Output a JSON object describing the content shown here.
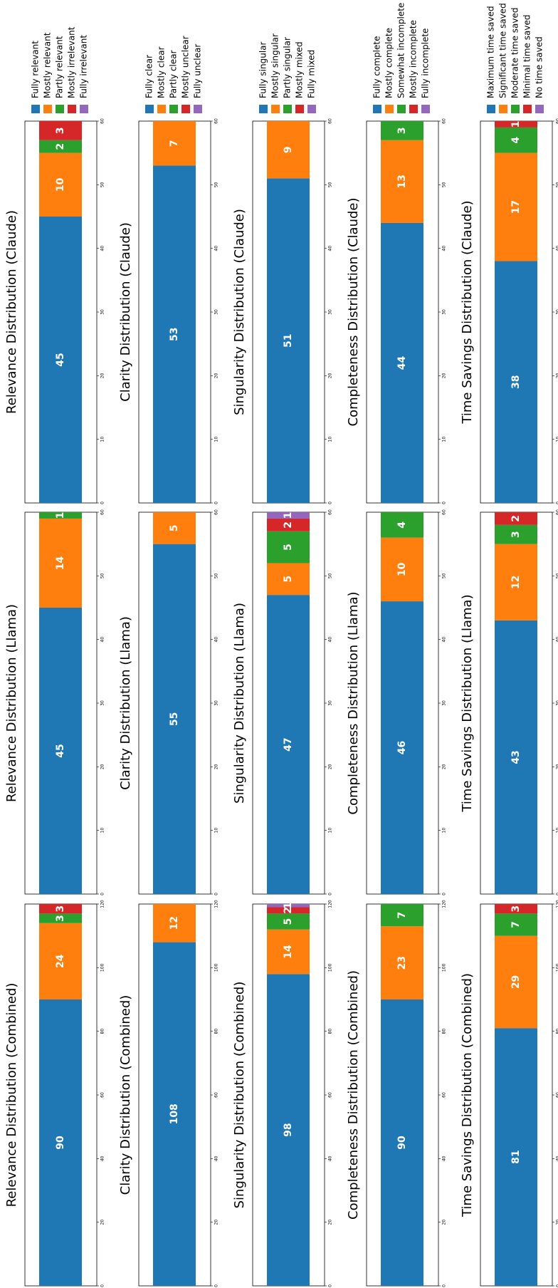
{
  "chart_data": [
    {
      "type": "stacked_bar",
      "categories": [
        "Fully relevant",
        "Mostly relevant",
        "Partly relevant",
        "Mostly irrelevant",
        "Fully irrelevant"
      ],
      "colors": [
        "#1f77b4",
        "#ff7f0e",
        "#2ca02c",
        "#d62728",
        "#9467bd"
      ],
      "charts": [
        {
          "title": "Relevance Distribution (Claude)",
          "values": [
            45,
            10,
            2,
            3,
            0
          ],
          "ylim": [
            0,
            60
          ],
          "yticks": [
            0,
            10,
            20,
            30,
            40,
            50,
            60
          ]
        },
        {
          "title": "Relevance Distribution (Llama)",
          "values": [
            45,
            14,
            1,
            0,
            0
          ],
          "ylim": [
            0,
            60
          ],
          "yticks": [
            0,
            10,
            20,
            30,
            40,
            50,
            60
          ]
        },
        {
          "title": "Relevance Distribution (Combined)",
          "values": [
            90,
            24,
            3,
            3,
            0
          ],
          "ylim": [
            0,
            120
          ],
          "yticks": [
            0,
            20,
            40,
            60,
            80,
            100,
            120
          ]
        }
      ]
    },
    {
      "type": "stacked_bar",
      "categories": [
        "Fully clear",
        "Mostly clear",
        "Partly clear",
        "Mostly unclear",
        "Fully unclear"
      ],
      "colors": [
        "#1f77b4",
        "#ff7f0e",
        "#2ca02c",
        "#d62728",
        "#9467bd"
      ],
      "charts": [
        {
          "title": "Clarity Distribution (Claude)",
          "values": [
            53,
            7,
            0,
            0,
            0
          ],
          "ylim": [
            0,
            60
          ],
          "yticks": [
            0,
            10,
            20,
            30,
            40,
            50,
            60
          ]
        },
        {
          "title": "Clarity Distribution (Llama)",
          "values": [
            55,
            5,
            0,
            0,
            0
          ],
          "ylim": [
            0,
            60
          ],
          "yticks": [
            0,
            10,
            20,
            30,
            40,
            50,
            60
          ]
        },
        {
          "title": "Clarity Distribution (Combined)",
          "values": [
            108,
            12,
            0,
            0,
            0
          ],
          "ylim": [
            0,
            120
          ],
          "yticks": [
            0,
            20,
            40,
            60,
            80,
            100,
            120
          ]
        }
      ]
    },
    {
      "type": "stacked_bar",
      "categories": [
        "Fully singular",
        "Mostly singular",
        "Partly singular",
        "Mostly mixed",
        "Fully mixed"
      ],
      "colors": [
        "#1f77b4",
        "#ff7f0e",
        "#2ca02c",
        "#d62728",
        "#9467bd"
      ],
      "charts": [
        {
          "title": "Singularity Distribution (Claude)",
          "values": [
            51,
            9,
            0,
            0,
            0
          ],
          "ylim": [
            0,
            60
          ],
          "yticks": [
            0,
            10,
            20,
            30,
            40,
            50,
            60
          ]
        },
        {
          "title": "Singularity Distribution (Llama)",
          "values": [
            47,
            5,
            5,
            2,
            1
          ],
          "ylim": [
            0,
            60
          ],
          "yticks": [
            0,
            10,
            20,
            30,
            40,
            50,
            60
          ]
        },
        {
          "title": "Singularity Distribution (Combined)",
          "values": [
            98,
            14,
            5,
            2,
            1
          ],
          "ylim": [
            0,
            120
          ],
          "yticks": [
            0,
            20,
            40,
            60,
            80,
            100,
            120
          ]
        }
      ]
    },
    {
      "type": "stacked_bar",
      "categories": [
        "Fully complete",
        "Mostly complete",
        "Somewhat incomplete",
        "Mostly incomplete",
        "Fully incomplete"
      ],
      "colors": [
        "#1f77b4",
        "#ff7f0e",
        "#2ca02c",
        "#d62728",
        "#9467bd"
      ],
      "charts": [
        {
          "title": "Completeness Distribution (Claude)",
          "values": [
            44,
            13,
            3,
            0,
            0
          ],
          "ylim": [
            0,
            60
          ],
          "yticks": [
            0,
            10,
            20,
            30,
            40,
            50,
            60
          ]
        },
        {
          "title": "Completeness Distribution (Llama)",
          "values": [
            46,
            10,
            4,
            0,
            0
          ],
          "ylim": [
            0,
            60
          ],
          "yticks": [
            0,
            10,
            20,
            30,
            40,
            50,
            60
          ]
        },
        {
          "title": "Completeness Distribution (Combined)",
          "values": [
            90,
            23,
            7,
            0,
            0
          ],
          "ylim": [
            0,
            120
          ],
          "yticks": [
            0,
            20,
            40,
            60,
            80,
            100,
            120
          ]
        }
      ]
    },
    {
      "type": "stacked_bar",
      "categories": [
        "Maximum time saved",
        "Significant time saved",
        "Moderate time saved",
        "Minimal time saved",
        "No time saved"
      ],
      "colors": [
        "#1f77b4",
        "#ff7f0e",
        "#2ca02c",
        "#d62728",
        "#9467bd"
      ],
      "charts": [
        {
          "title": "Time Savings Distribution (Claude)",
          "values": [
            38,
            17,
            4,
            1,
            0
          ],
          "ylim": [
            0,
            60
          ],
          "yticks": [
            0,
            10,
            20,
            30,
            40,
            50,
            60
          ]
        },
        {
          "title": "Time Savings Distribution (Llama)",
          "values": [
            43,
            12,
            3,
            2,
            0
          ],
          "ylim": [
            0,
            60
          ],
          "yticks": [
            0,
            10,
            20,
            30,
            40,
            50,
            60
          ]
        },
        {
          "title": "Time Savings Distribution (Combined)",
          "values": [
            81,
            29,
            7,
            3,
            0
          ],
          "ylim": [
            0,
            120
          ],
          "yticks": [
            0,
            20,
            40,
            60,
            80,
            100,
            120
          ]
        }
      ]
    }
  ]
}
